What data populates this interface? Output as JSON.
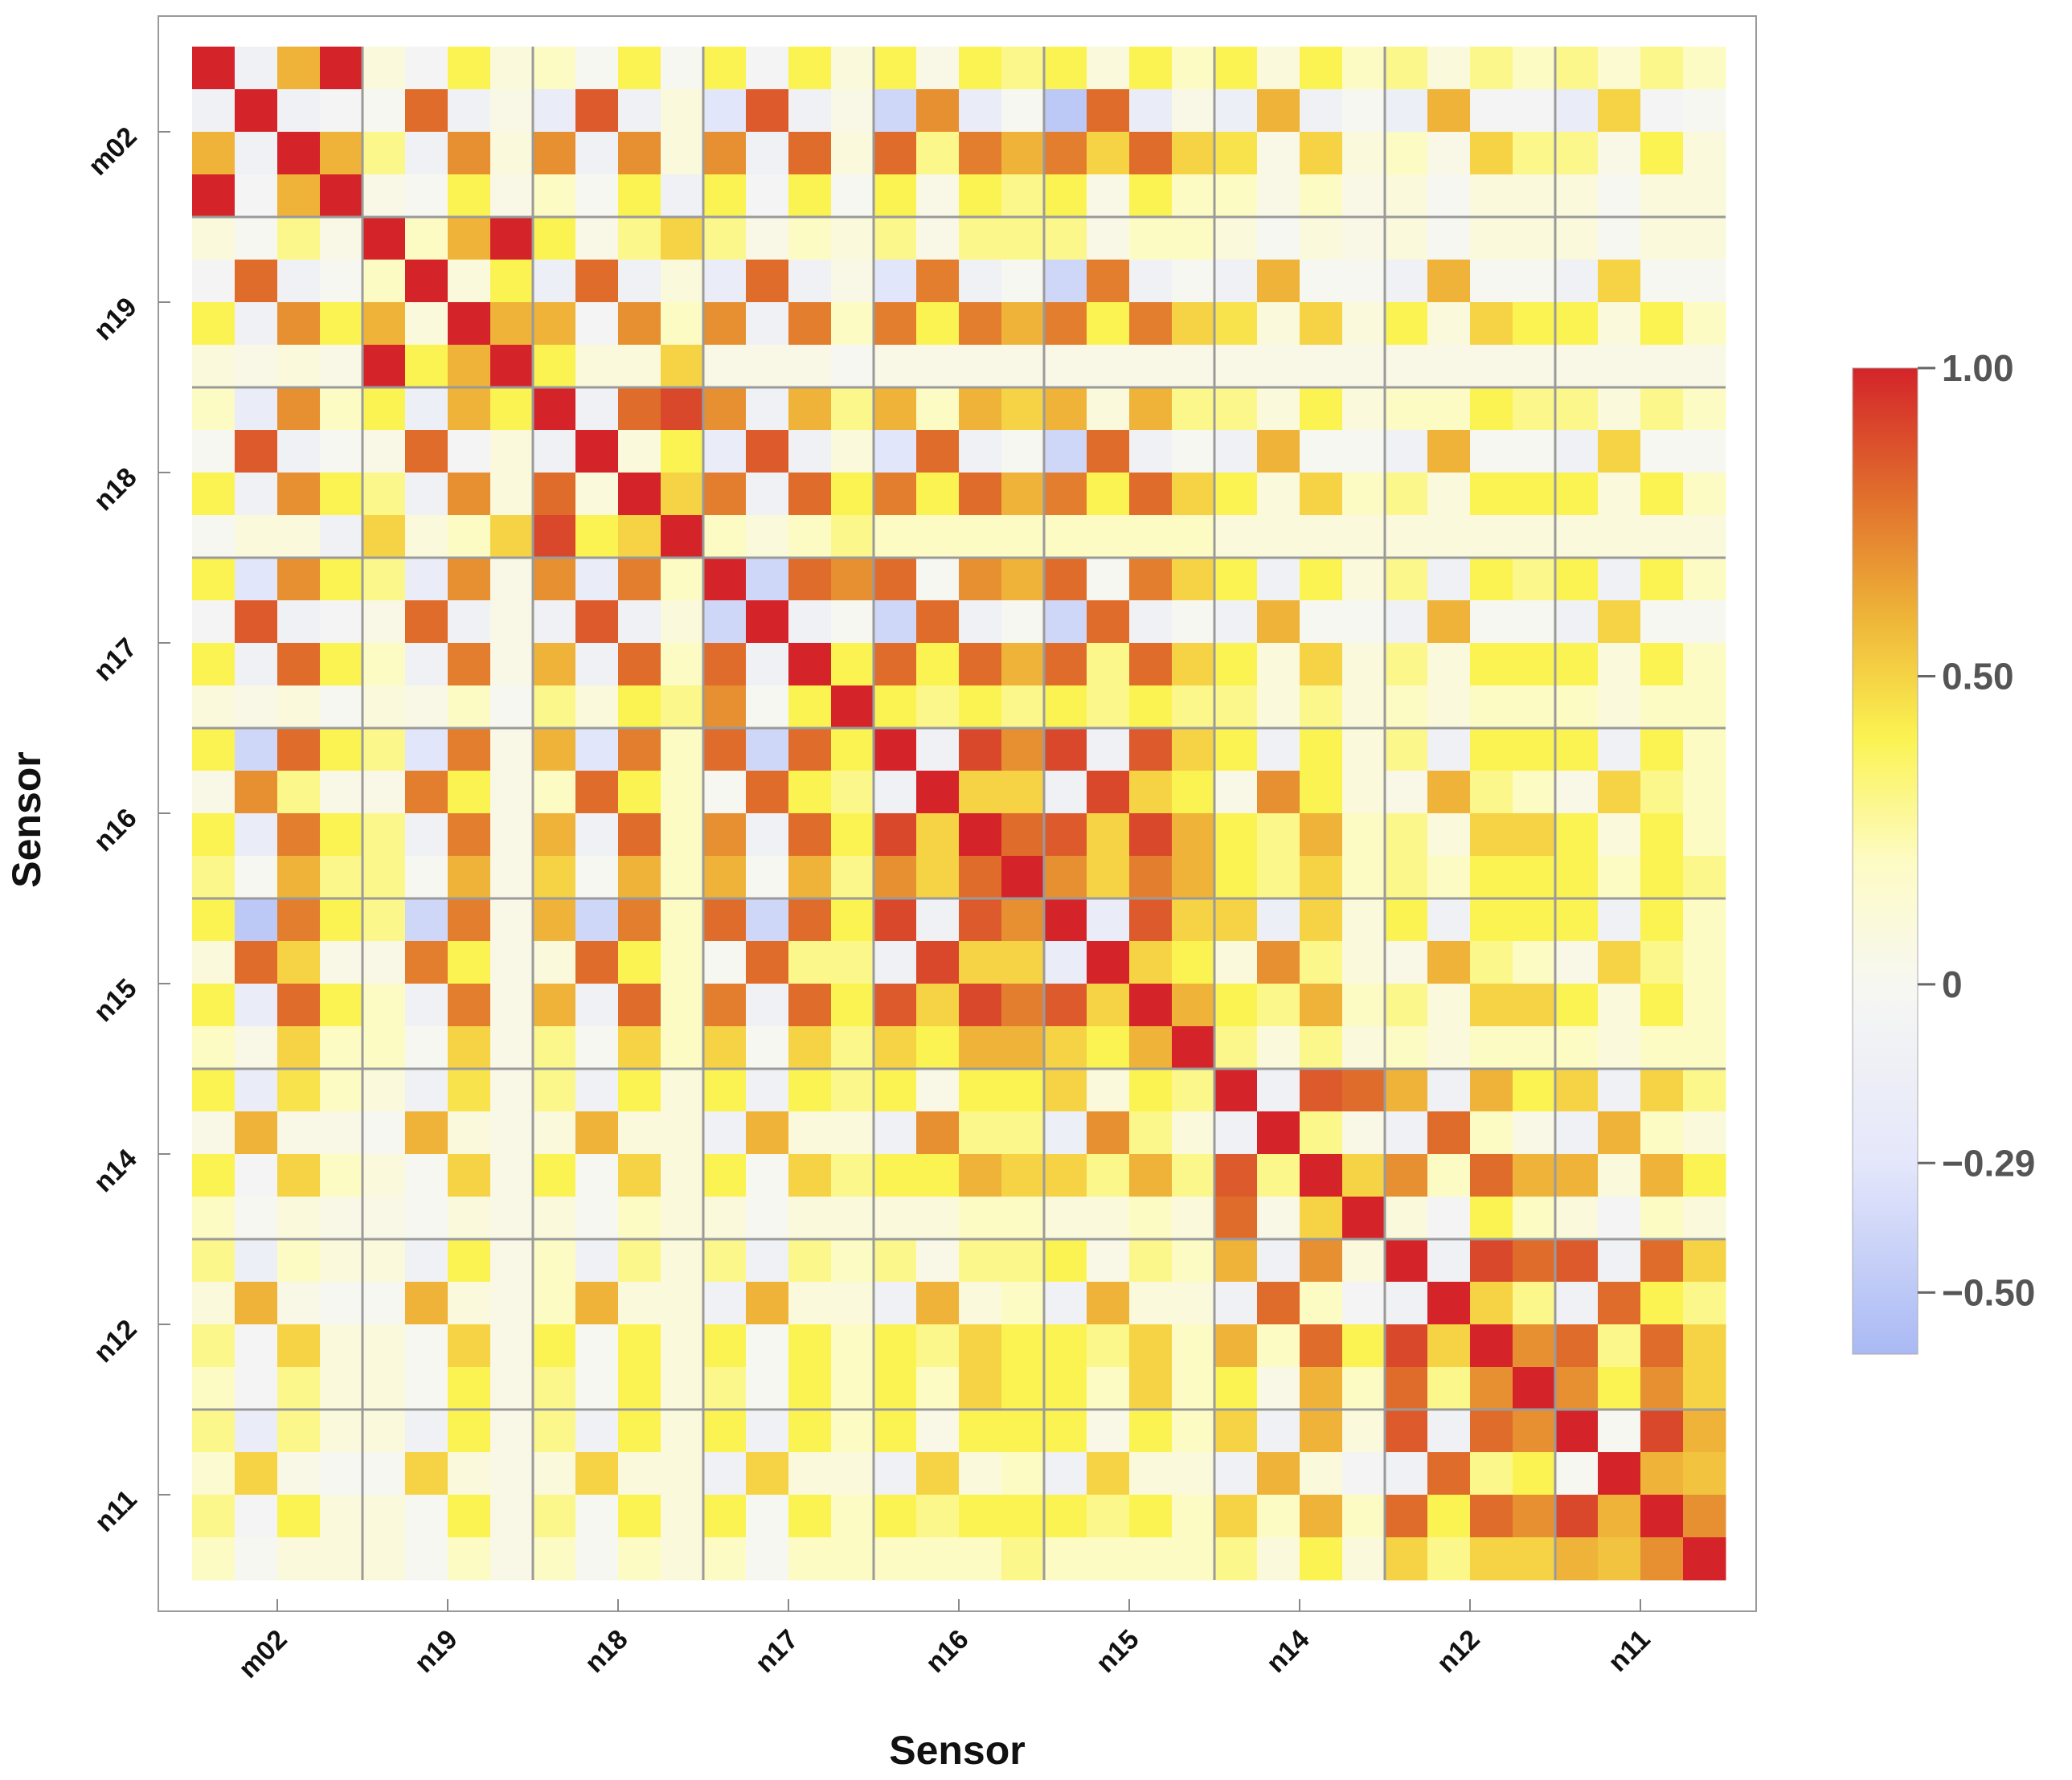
{
  "chart_data": {
    "type": "heatmap",
    "title": "",
    "xlabel": "Sensor",
    "ylabel": "Sensor",
    "groups": [
      "m02",
      "n19",
      "n18",
      "n17",
      "n16",
      "n15",
      "n14",
      "n12",
      "n11"
    ],
    "channels_per_group": 4,
    "value_range": [
      -0.6,
      1.0
    ],
    "grid": "group separators",
    "legend": "right",
    "colorbar": {
      "ticks": [
        {
          "value": 1.0,
          "label": "1.00"
        },
        {
          "value": 0.5,
          "label": "0.50"
        },
        {
          "value": 0.0,
          "label": "0"
        },
        {
          "value": -0.29,
          "label": "−0.29"
        },
        {
          "value": -0.5,
          "label": "−0.50"
        }
      ],
      "stops": [
        {
          "value": -0.6,
          "color": "#a9b9f4"
        },
        {
          "value": -0.29,
          "color": "#e4e7fb"
        },
        {
          "value": 0.0,
          "color": "#f7f7f2"
        },
        {
          "value": 0.2,
          "color": "#fdfbc4"
        },
        {
          "value": 0.4,
          "color": "#fbf352"
        },
        {
          "value": 0.6,
          "color": "#eeb338"
        },
        {
          "value": 0.8,
          "color": "#e06c2c"
        },
        {
          "value": 1.0,
          "color": "#d4242a"
        }
      ]
    },
    "matrix": [
      [
        1.0,
        -0.1,
        0.6,
        1.0,
        0.1,
        -0.05,
        0.4,
        0.1,
        0.2,
        0.0,
        0.4,
        0.0,
        0.4,
        -0.05,
        0.4,
        0.1,
        0.4,
        0.05,
        0.4,
        0.3,
        0.4,
        0.1,
        0.4,
        0.2,
        0.4,
        0.1,
        0.4,
        0.2,
        0.3,
        0.1,
        0.3,
        0.2,
        0.3,
        0.15,
        0.3,
        0.2
      ],
      [
        -0.1,
        1.0,
        -0.1,
        -0.05,
        0.0,
        0.8,
        -0.1,
        0.05,
        -0.2,
        0.85,
        -0.1,
        0.1,
        -0.3,
        0.85,
        -0.1,
        0.05,
        -0.4,
        0.7,
        -0.2,
        0.0,
        -0.5,
        0.8,
        -0.2,
        0.05,
        -0.15,
        0.6,
        -0.1,
        0.0,
        -0.15,
        0.6,
        -0.05,
        -0.05,
        -0.2,
        0.5,
        -0.05,
        0.0
      ],
      [
        0.6,
        -0.1,
        1.0,
        0.6,
        0.3,
        -0.1,
        0.7,
        0.1,
        0.7,
        -0.1,
        0.7,
        0.1,
        0.7,
        -0.1,
        0.8,
        0.1,
        0.8,
        0.3,
        0.75,
        0.6,
        0.75,
        0.5,
        0.8,
        0.5,
        0.45,
        0.05,
        0.5,
        0.1,
        0.2,
        0.05,
        0.5,
        0.3,
        0.3,
        0.05,
        0.4,
        0.1
      ],
      [
        1.0,
        -0.05,
        0.6,
        1.0,
        0.05,
        0.0,
        0.4,
        0.05,
        0.2,
        0.0,
        0.4,
        -0.1,
        0.4,
        -0.05,
        0.4,
        0.0,
        0.4,
        0.05,
        0.4,
        0.3,
        0.4,
        0.05,
        0.4,
        0.2,
        0.2,
        0.05,
        0.2,
        0.05,
        0.1,
        0.0,
        0.1,
        0.1,
        0.1,
        0.0,
        0.1,
        0.1
      ],
      [
        0.1,
        0.0,
        0.3,
        0.05,
        1.0,
        0.2,
        0.6,
        1.0,
        0.4,
        0.05,
        0.3,
        0.5,
        0.3,
        0.05,
        0.2,
        0.1,
        0.3,
        0.05,
        0.3,
        0.3,
        0.3,
        0.05,
        0.2,
        0.2,
        0.1,
        0.0,
        0.1,
        0.05,
        0.1,
        0.0,
        0.1,
        0.1,
        0.1,
        0.0,
        0.1,
        0.1
      ],
      [
        -0.05,
        0.8,
        -0.1,
        0.0,
        0.2,
        1.0,
        0.1,
        0.4,
        -0.15,
        0.8,
        -0.1,
        0.1,
        -0.2,
        0.8,
        -0.1,
        0.05,
        -0.3,
        0.75,
        -0.1,
        0.0,
        -0.4,
        0.75,
        -0.1,
        0.0,
        -0.1,
        0.6,
        0.0,
        0.0,
        -0.1,
        0.6,
        0.0,
        0.0,
        -0.1,
        0.5,
        0.0,
        0.0
      ],
      [
        0.4,
        -0.1,
        0.7,
        0.4,
        0.6,
        0.1,
        1.0,
        0.6,
        0.6,
        -0.05,
        0.7,
        0.2,
        0.7,
        -0.1,
        0.75,
        0.2,
        0.75,
        0.4,
        0.75,
        0.6,
        0.75,
        0.4,
        0.75,
        0.5,
        0.45,
        0.1,
        0.5,
        0.1,
        0.4,
        0.1,
        0.5,
        0.4,
        0.4,
        0.1,
        0.4,
        0.2
      ],
      [
        0.1,
        0.05,
        0.1,
        0.05,
        1.0,
        0.4,
        0.6,
        1.0,
        0.4,
        0.1,
        0.1,
        0.5,
        0.05,
        0.05,
        0.05,
        0.0,
        0.05,
        0.05,
        0.05,
        0.05,
        0.05,
        0.05,
        0.05,
        0.05,
        0.05,
        0.05,
        0.05,
        0.05,
        0.05,
        0.05,
        0.05,
        0.05,
        0.05,
        0.05,
        0.05,
        0.05
      ],
      [
        0.2,
        -0.2,
        0.7,
        0.2,
        0.4,
        -0.15,
        0.6,
        0.4,
        1.0,
        -0.1,
        0.8,
        0.9,
        0.7,
        -0.1,
        0.6,
        0.3,
        0.6,
        0.2,
        0.6,
        0.5,
        0.6,
        0.1,
        0.6,
        0.3,
        0.3,
        0.1,
        0.4,
        0.1,
        0.2,
        0.2,
        0.4,
        0.3,
        0.3,
        0.1,
        0.3,
        0.2
      ],
      [
        0.0,
        0.85,
        -0.1,
        0.0,
        0.05,
        0.8,
        -0.05,
        0.1,
        -0.1,
        1.0,
        0.1,
        0.4,
        -0.2,
        0.85,
        -0.1,
        0.1,
        -0.3,
        0.8,
        -0.1,
        0.0,
        -0.4,
        0.8,
        -0.1,
        0.0,
        -0.1,
        0.6,
        0.0,
        0.0,
        -0.1,
        0.6,
        0.0,
        0.0,
        -0.1,
        0.5,
        0.0,
        0.0
      ],
      [
        0.4,
        -0.1,
        0.7,
        0.4,
        0.3,
        -0.1,
        0.7,
        0.1,
        0.8,
        0.1,
        1.0,
        0.5,
        0.75,
        -0.1,
        0.8,
        0.4,
        0.75,
        0.4,
        0.8,
        0.6,
        0.75,
        0.4,
        0.8,
        0.5,
        0.4,
        0.1,
        0.5,
        0.2,
        0.3,
        0.1,
        0.4,
        0.4,
        0.4,
        0.1,
        0.4,
        0.2
      ],
      [
        0.0,
        0.1,
        0.1,
        -0.1,
        0.5,
        0.1,
        0.2,
        0.5,
        0.9,
        0.4,
        0.5,
        1.0,
        0.2,
        0.1,
        0.2,
        0.3,
        0.2,
        0.2,
        0.2,
        0.2,
        0.2,
        0.2,
        0.2,
        0.2,
        0.1,
        0.1,
        0.1,
        0.1,
        0.1,
        0.1,
        0.1,
        0.1,
        0.1,
        0.1,
        0.1,
        0.1
      ],
      [
        0.4,
        -0.3,
        0.7,
        0.4,
        0.3,
        -0.2,
        0.7,
        0.05,
        0.7,
        -0.2,
        0.75,
        0.2,
        1.0,
        -0.4,
        0.8,
        0.7,
        0.8,
        0.0,
        0.7,
        0.6,
        0.8,
        0.0,
        0.75,
        0.5,
        0.4,
        -0.1,
        0.4,
        0.1,
        0.3,
        -0.1,
        0.4,
        0.3,
        0.4,
        -0.1,
        0.4,
        0.2
      ],
      [
        -0.05,
        0.85,
        -0.1,
        -0.05,
        0.05,
        0.8,
        -0.1,
        0.05,
        -0.1,
        0.85,
        -0.1,
        0.1,
        -0.4,
        1.0,
        -0.1,
        0.0,
        -0.4,
        0.8,
        -0.1,
        0.0,
        -0.4,
        0.8,
        -0.1,
        0.0,
        -0.1,
        0.6,
        0.0,
        0.0,
        -0.1,
        0.6,
        0.0,
        0.0,
        -0.1,
        0.5,
        0.0,
        0.0
      ],
      [
        0.4,
        -0.1,
        0.8,
        0.4,
        0.2,
        -0.1,
        0.75,
        0.05,
        0.6,
        -0.1,
        0.8,
        0.2,
        0.8,
        -0.1,
        1.0,
        0.4,
        0.8,
        0.4,
        0.8,
        0.6,
        0.8,
        0.3,
        0.8,
        0.5,
        0.4,
        0.1,
        0.5,
        0.1,
        0.3,
        0.1,
        0.4,
        0.4,
        0.4,
        0.1,
        0.4,
        0.2
      ],
      [
        0.1,
        0.05,
        0.1,
        0.0,
        0.1,
        0.05,
        0.2,
        0.0,
        0.3,
        0.1,
        0.4,
        0.3,
        0.7,
        0.0,
        0.4,
        1.0,
        0.4,
        0.3,
        0.4,
        0.3,
        0.4,
        0.3,
        0.4,
        0.3,
        0.3,
        0.1,
        0.3,
        0.1,
        0.2,
        0.1,
        0.2,
        0.2,
        0.2,
        0.1,
        0.2,
        0.2
      ],
      [
        0.4,
        -0.4,
        0.8,
        0.4,
        0.3,
        -0.3,
        0.75,
        0.05,
        0.6,
        -0.3,
        0.75,
        0.2,
        0.8,
        -0.4,
        0.8,
        0.4,
        1.0,
        -0.1,
        0.9,
        0.7,
        0.9,
        -0.1,
        0.85,
        0.5,
        0.4,
        -0.1,
        0.4,
        0.1,
        0.3,
        -0.1,
        0.4,
        0.4,
        0.4,
        -0.1,
        0.4,
        0.2
      ],
      [
        0.05,
        0.7,
        0.3,
        0.05,
        0.05,
        0.75,
        0.4,
        0.05,
        0.2,
        0.8,
        0.4,
        0.2,
        0.0,
        0.8,
        0.4,
        0.3,
        -0.1,
        1.0,
        0.5,
        0.5,
        -0.1,
        0.9,
        0.5,
        0.4,
        0.05,
        0.7,
        0.4,
        0.1,
        0.05,
        0.6,
        0.3,
        0.2,
        0.05,
        0.5,
        0.3,
        0.2
      ],
      [
        0.4,
        -0.2,
        0.75,
        0.4,
        0.3,
        -0.1,
        0.75,
        0.05,
        0.6,
        -0.1,
        0.8,
        0.2,
        0.7,
        -0.1,
        0.8,
        0.4,
        0.9,
        0.5,
        1.0,
        0.8,
        0.85,
        0.5,
        0.9,
        0.6,
        0.4,
        0.3,
        0.6,
        0.2,
        0.3,
        0.1,
        0.5,
        0.5,
        0.4,
        0.1,
        0.4,
        0.2
      ],
      [
        0.3,
        0.0,
        0.6,
        0.3,
        0.3,
        0.0,
        0.6,
        0.05,
        0.5,
        0.0,
        0.6,
        0.2,
        0.6,
        0.0,
        0.6,
        0.3,
        0.7,
        0.5,
        0.8,
        1.0,
        0.7,
        0.5,
        0.75,
        0.6,
        0.4,
        0.3,
        0.5,
        0.2,
        0.3,
        0.2,
        0.4,
        0.4,
        0.4,
        0.2,
        0.4,
        0.3
      ],
      [
        0.4,
        -0.5,
        0.75,
        0.4,
        0.3,
        -0.4,
        0.75,
        0.05,
        0.6,
        -0.4,
        0.75,
        0.2,
        0.8,
        -0.4,
        0.8,
        0.4,
        0.9,
        -0.1,
        0.85,
        0.7,
        1.0,
        -0.2,
        0.85,
        0.5,
        0.5,
        -0.15,
        0.5,
        0.1,
        0.4,
        -0.1,
        0.4,
        0.4,
        0.4,
        -0.1,
        0.4,
        0.2
      ],
      [
        0.1,
        0.8,
        0.5,
        0.05,
        0.05,
        0.75,
        0.4,
        0.05,
        0.1,
        0.8,
        0.4,
        0.2,
        0.0,
        0.8,
        0.3,
        0.3,
        -0.1,
        0.9,
        0.5,
        0.5,
        -0.2,
        1.0,
        0.5,
        0.4,
        0.1,
        0.7,
        0.3,
        0.1,
        0.05,
        0.6,
        0.3,
        0.2,
        0.05,
        0.5,
        0.3,
        0.2
      ],
      [
        0.4,
        -0.2,
        0.8,
        0.4,
        0.2,
        -0.1,
        0.75,
        0.05,
        0.6,
        -0.1,
        0.8,
        0.2,
        0.75,
        -0.1,
        0.8,
        0.4,
        0.85,
        0.5,
        0.9,
        0.75,
        0.85,
        0.5,
        1.0,
        0.6,
        0.4,
        0.3,
        0.6,
        0.2,
        0.3,
        0.1,
        0.5,
        0.5,
        0.4,
        0.1,
        0.4,
        0.2
      ],
      [
        0.2,
        0.05,
        0.5,
        0.2,
        0.2,
        0.0,
        0.5,
        0.05,
        0.3,
        0.0,
        0.5,
        0.2,
        0.5,
        0.0,
        0.5,
        0.3,
        0.5,
        0.4,
        0.6,
        0.6,
        0.5,
        0.4,
        0.6,
        1.0,
        0.3,
        0.1,
        0.3,
        0.1,
        0.2,
        0.1,
        0.2,
        0.2,
        0.2,
        0.1,
        0.2,
        0.2
      ],
      [
        0.4,
        -0.2,
        0.45,
        0.2,
        0.1,
        -0.1,
        0.45,
        0.05,
        0.3,
        -0.1,
        0.4,
        0.1,
        0.4,
        -0.1,
        0.4,
        0.3,
        0.4,
        0.05,
        0.4,
        0.4,
        0.5,
        0.1,
        0.4,
        0.3,
        1.0,
        -0.1,
        0.85,
        0.8,
        0.6,
        -0.1,
        0.6,
        0.4,
        0.5,
        -0.1,
        0.5,
        0.3
      ],
      [
        0.05,
        0.6,
        0.05,
        0.05,
        0.0,
        0.6,
        0.1,
        0.05,
        0.1,
        0.6,
        0.1,
        0.1,
        -0.1,
        0.6,
        0.1,
        0.1,
        -0.1,
        0.7,
        0.3,
        0.3,
        -0.15,
        0.7,
        0.3,
        0.1,
        -0.1,
        1.0,
        0.3,
        0.05,
        -0.1,
        0.8,
        0.2,
        0.05,
        -0.1,
        0.6,
        0.2,
        0.1
      ],
      [
        0.4,
        -0.05,
        0.5,
        0.2,
        0.1,
        0.0,
        0.5,
        0.05,
        0.4,
        0.0,
        0.5,
        0.1,
        0.4,
        0.0,
        0.5,
        0.3,
        0.4,
        0.4,
        0.6,
        0.5,
        0.5,
        0.3,
        0.6,
        0.3,
        0.85,
        0.3,
        1.0,
        0.5,
        0.7,
        0.2,
        0.8,
        0.6,
        0.6,
        0.1,
        0.6,
        0.4
      ],
      [
        0.2,
        0.0,
        0.1,
        0.05,
        0.05,
        0.0,
        0.1,
        0.05,
        0.1,
        0.0,
        0.2,
        0.1,
        0.1,
        0.0,
        0.1,
        0.1,
        0.1,
        0.1,
        0.2,
        0.2,
        0.1,
        0.1,
        0.2,
        0.1,
        0.8,
        0.05,
        0.5,
        1.0,
        0.1,
        -0.05,
        0.4,
        0.2,
        0.1,
        -0.05,
        0.2,
        0.1
      ],
      [
        0.3,
        -0.15,
        0.2,
        0.1,
        0.1,
        -0.1,
        0.4,
        0.05,
        0.2,
        -0.1,
        0.3,
        0.1,
        0.3,
        -0.1,
        0.3,
        0.2,
        0.3,
        0.05,
        0.3,
        0.3,
        0.4,
        0.05,
        0.3,
        0.2,
        0.6,
        -0.1,
        0.7,
        0.1,
        1.0,
        -0.1,
        0.9,
        0.8,
        0.85,
        -0.1,
        0.8,
        0.5
      ],
      [
        0.1,
        0.6,
        0.05,
        0.0,
        0.0,
        0.6,
        0.1,
        0.05,
        0.2,
        0.6,
        0.1,
        0.1,
        -0.1,
        0.6,
        0.1,
        0.1,
        -0.1,
        0.6,
        0.1,
        0.2,
        -0.1,
        0.6,
        0.1,
        0.1,
        -0.1,
        0.8,
        0.2,
        -0.05,
        -0.1,
        1.0,
        0.5,
        0.3,
        -0.1,
        0.8,
        0.4,
        0.3
      ],
      [
        0.3,
        -0.05,
        0.5,
        0.1,
        0.1,
        0.0,
        0.5,
        0.05,
        0.4,
        0.0,
        0.4,
        0.1,
        0.4,
        0.0,
        0.4,
        0.2,
        0.4,
        0.3,
        0.5,
        0.4,
        0.4,
        0.3,
        0.5,
        0.2,
        0.6,
        0.2,
        0.8,
        0.4,
        0.9,
        0.5,
        1.0,
        0.7,
        0.8,
        0.3,
        0.8,
        0.5
      ],
      [
        0.2,
        -0.05,
        0.3,
        0.1,
        0.1,
        0.0,
        0.4,
        0.05,
        0.3,
        0.0,
        0.4,
        0.1,
        0.3,
        0.0,
        0.4,
        0.2,
        0.4,
        0.2,
        0.5,
        0.4,
        0.4,
        0.2,
        0.5,
        0.2,
        0.4,
        0.05,
        0.6,
        0.2,
        0.8,
        0.3,
        0.7,
        1.0,
        0.7,
        0.4,
        0.7,
        0.5
      ],
      [
        0.3,
        -0.2,
        0.3,
        0.1,
        0.1,
        -0.1,
        0.4,
        0.05,
        0.3,
        -0.1,
        0.4,
        0.1,
        0.4,
        -0.1,
        0.4,
        0.2,
        0.4,
        0.05,
        0.4,
        0.4,
        0.4,
        0.05,
        0.4,
        0.2,
        0.5,
        -0.1,
        0.6,
        0.1,
        0.85,
        -0.1,
        0.8,
        0.7,
        1.0,
        0.0,
        0.9,
        0.6
      ],
      [
        0.15,
        0.5,
        0.05,
        0.0,
        0.0,
        0.5,
        0.1,
        0.05,
        0.1,
        0.5,
        0.1,
        0.1,
        -0.1,
        0.5,
        0.1,
        0.1,
        -0.1,
        0.5,
        0.1,
        0.2,
        -0.1,
        0.5,
        0.1,
        0.1,
        -0.1,
        0.6,
        0.1,
        -0.05,
        -0.1,
        0.8,
        0.3,
        0.4,
        0.0,
        1.0,
        0.6,
        0.55
      ],
      [
        0.3,
        -0.05,
        0.4,
        0.1,
        0.1,
        0.0,
        0.4,
        0.05,
        0.3,
        0.0,
        0.4,
        0.1,
        0.4,
        0.0,
        0.4,
        0.2,
        0.4,
        0.3,
        0.4,
        0.4,
        0.4,
        0.3,
        0.4,
        0.2,
        0.5,
        0.2,
        0.6,
        0.2,
        0.8,
        0.4,
        0.8,
        0.7,
        0.9,
        0.6,
        1.0,
        0.7
      ],
      [
        0.2,
        0.0,
        0.1,
        0.1,
        0.1,
        0.0,
        0.2,
        0.05,
        0.2,
        0.0,
        0.2,
        0.1,
        0.2,
        0.0,
        0.2,
        0.2,
        0.2,
        0.2,
        0.2,
        0.3,
        0.2,
        0.2,
        0.2,
        0.2,
        0.3,
        0.1,
        0.4,
        0.1,
        0.5,
        0.3,
        0.5,
        0.5,
        0.6,
        0.55,
        0.7,
        1.0
      ]
    ]
  }
}
